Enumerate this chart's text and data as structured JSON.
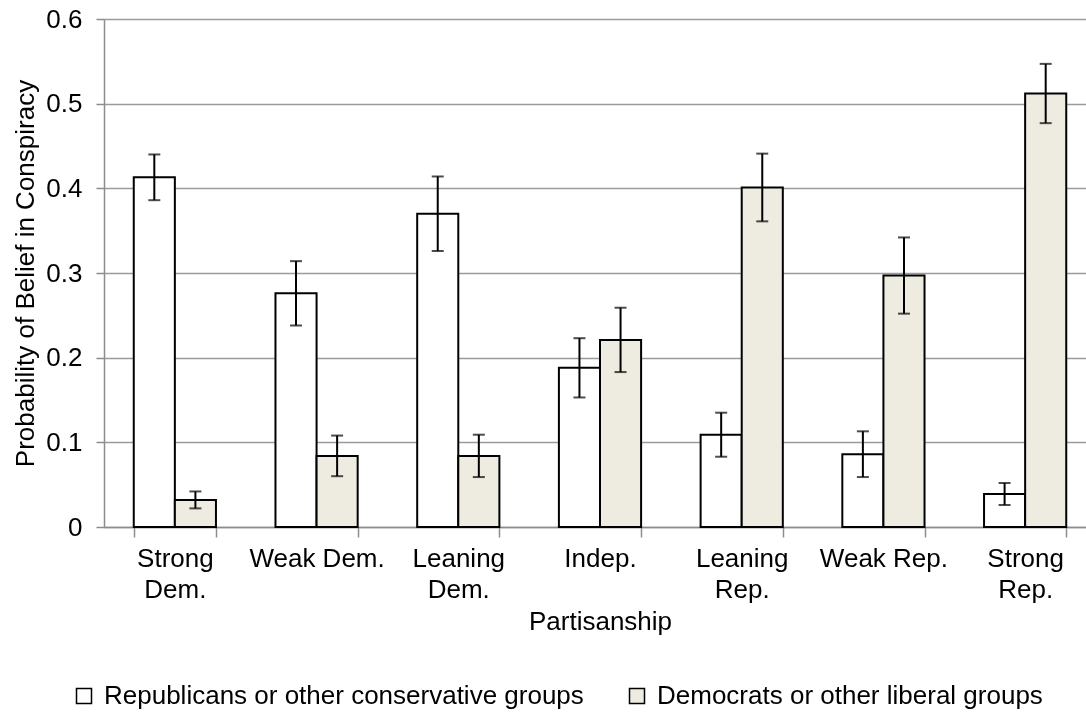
{
  "chart_data": {
    "type": "bar",
    "xlabel": "Partisanship",
    "ylabel": "Probability of Belief in Conspiracy",
    "categories": [
      "Strong Dem.",
      "Weak Dem.",
      "Leaning Dem.",
      "Indep.",
      "Leaning Rep.",
      "Weak Rep.",
      "Strong Rep."
    ],
    "series": [
      {
        "name": "Republicans or other conservative groups",
        "color": "#ffffff",
        "values": [
          0.413,
          0.276,
          0.37,
          0.188,
          0.109,
          0.086,
          0.039
        ],
        "errors": [
          0.027,
          0.038,
          0.044,
          0.035,
          0.026,
          0.027,
          0.013
        ]
      },
      {
        "name": "Democrats or other liberal groups",
        "color": "#eeece1",
        "values": [
          0.032,
          0.084,
          0.084,
          0.221,
          0.401,
          0.297,
          0.512
        ],
        "errors": [
          0.01,
          0.024,
          0.025,
          0.038,
          0.04,
          0.045,
          0.035
        ]
      }
    ],
    "ylim": [
      0,
      0.6
    ],
    "yticks": [
      0,
      0.1,
      0.2,
      0.3,
      0.4,
      0.5,
      0.6
    ],
    "grid": "y",
    "legend": "bottom"
  }
}
